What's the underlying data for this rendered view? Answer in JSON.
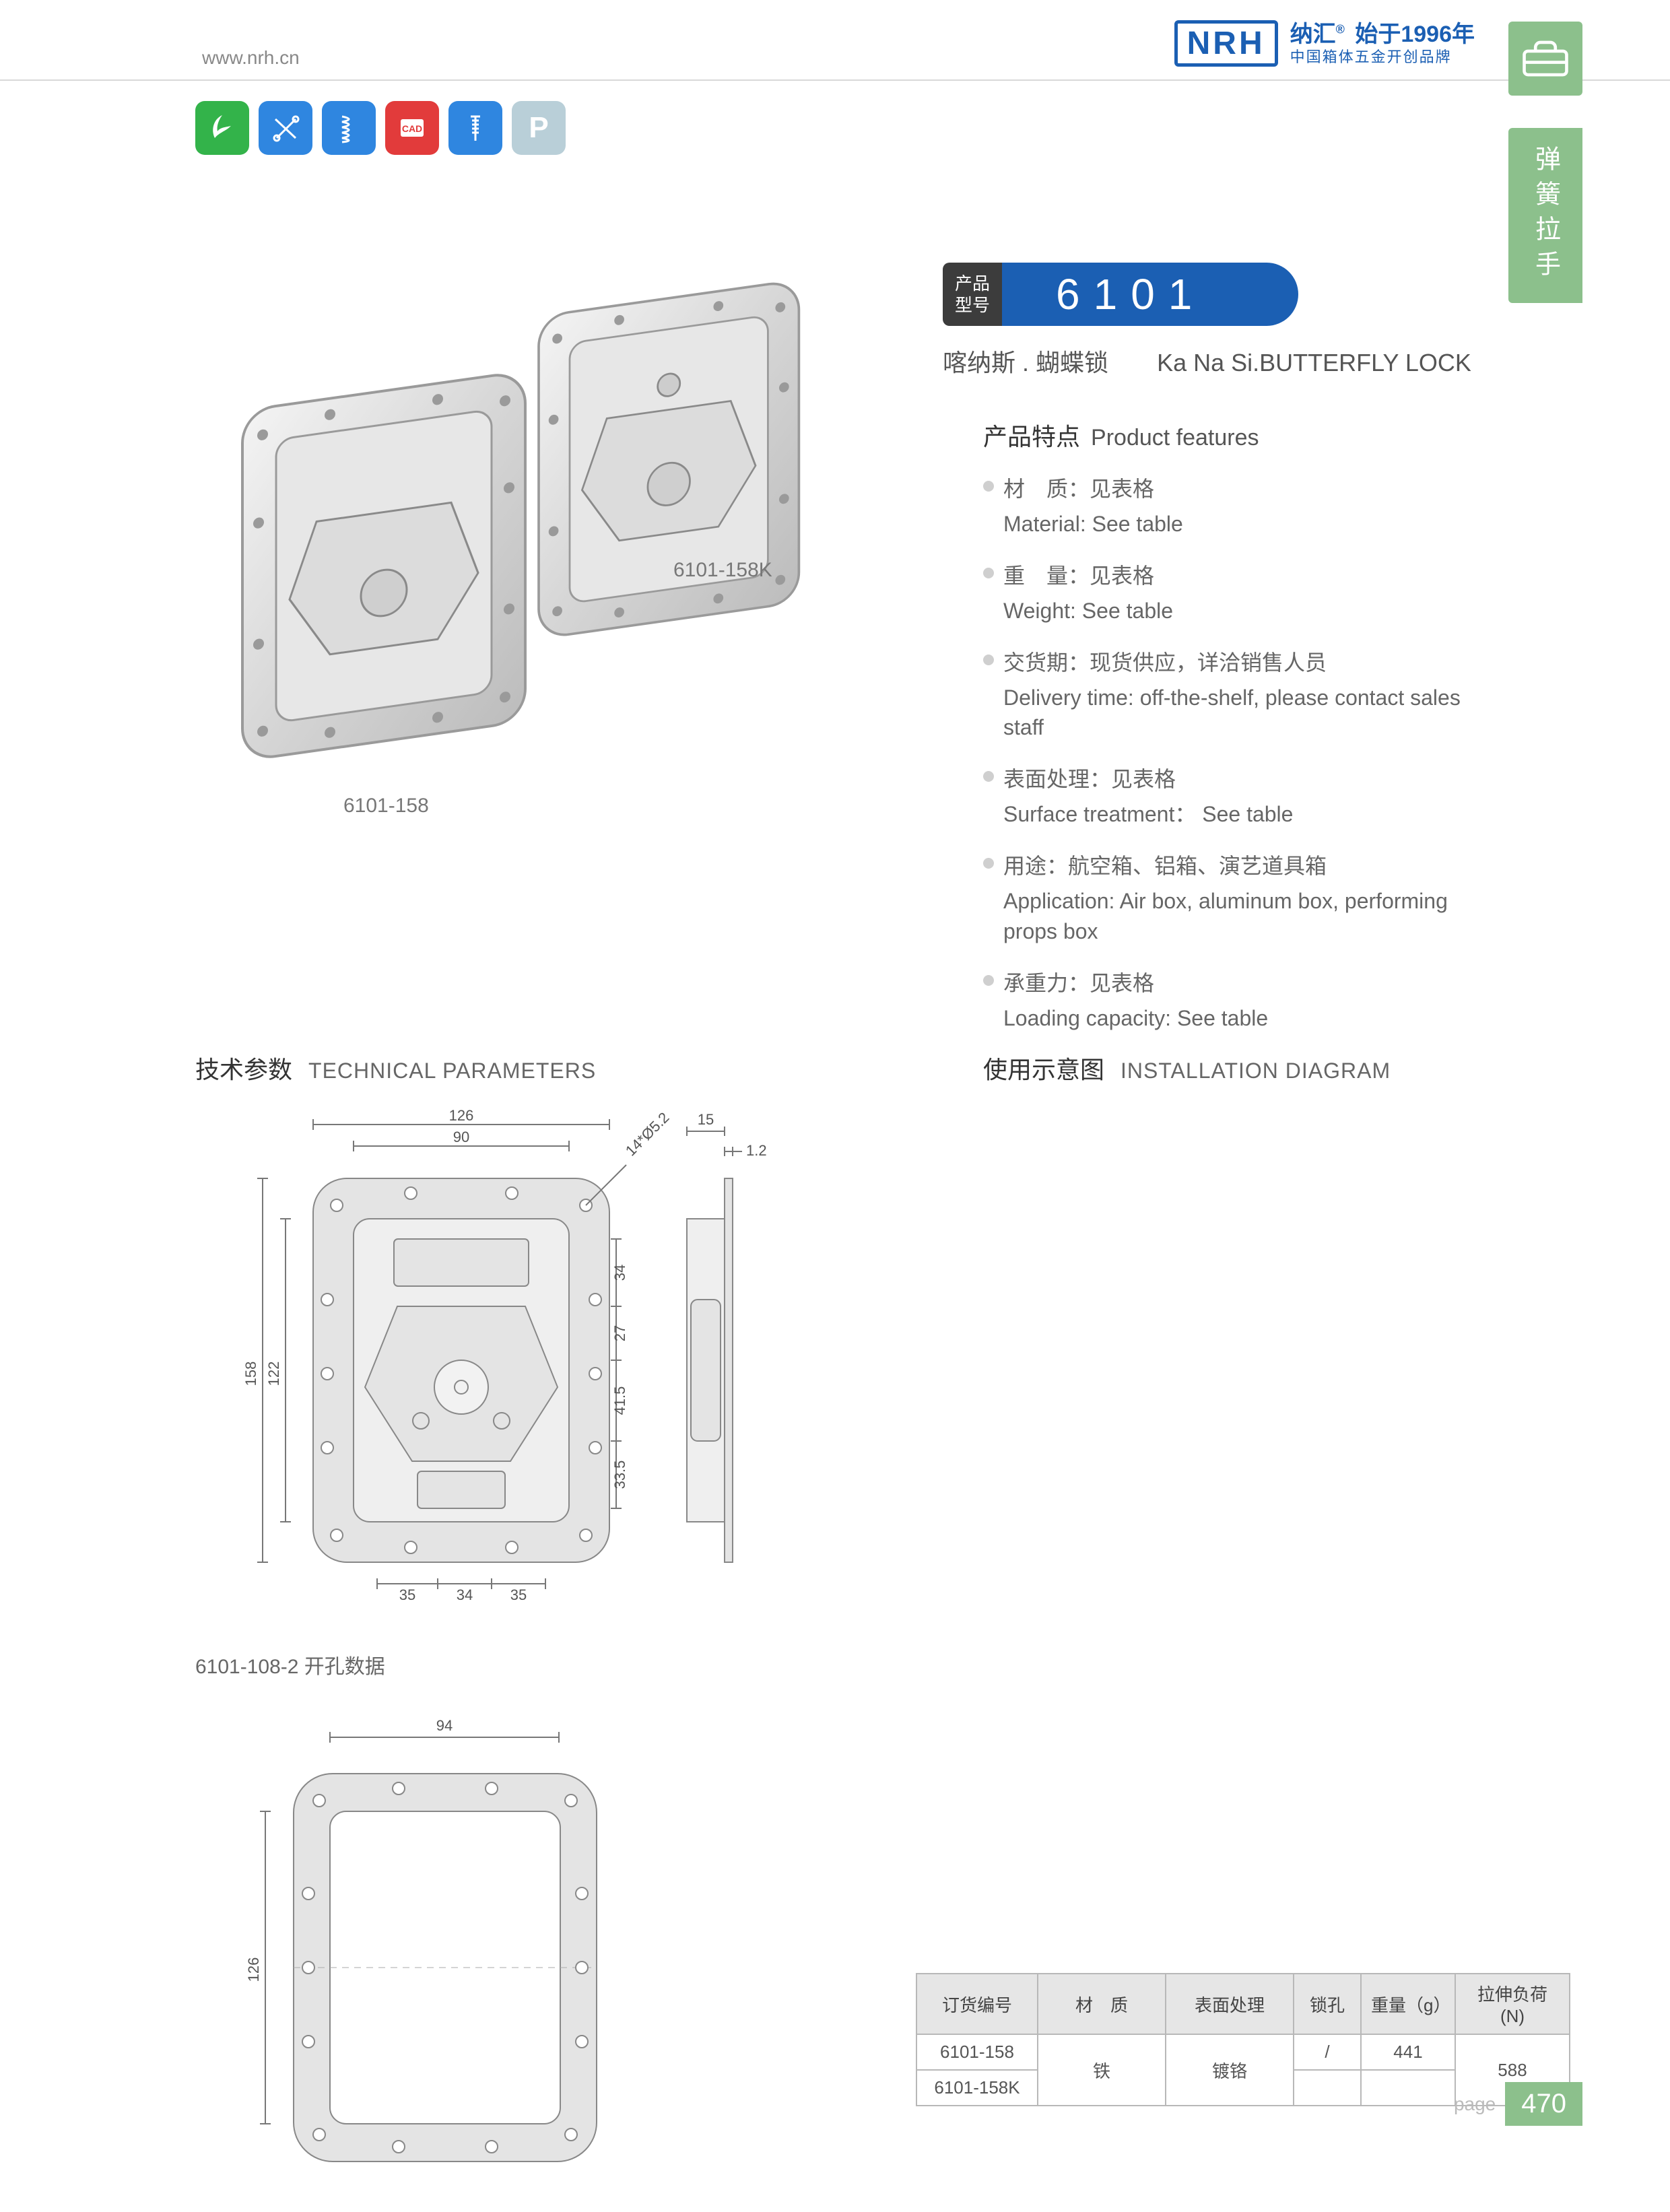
{
  "header": {
    "url": "www.nrh.cn",
    "logo_text": "NRH",
    "brand_cn": "纳汇",
    "brand_since": "始于1996年",
    "brand_tagline": "中国箱体五金开创品牌"
  },
  "side_tab": {
    "label": "弹簧拉手"
  },
  "badges": {
    "colors": [
      "#33b34a",
      "#2f86e0",
      "#2f86e0",
      "#e23b3b",
      "#2f86e0",
      "#b9cfd8"
    ],
    "cad_text": "CAD",
    "p_text": "P"
  },
  "photo_labels": {
    "left": "6101-158",
    "right": "6101-158K"
  },
  "model": {
    "prefix_line1": "产品",
    "prefix_line2": "型号",
    "number": "6101",
    "subtitle_cn": "喀纳斯 . 蝴蝶锁",
    "subtitle_en": "Ka Na Si.BUTTERFLY LOCK"
  },
  "features": {
    "title_cn": "产品特点",
    "title_en": "Product features",
    "items": [
      {
        "cn": "材　质：见表格",
        "en": "Material: See table"
      },
      {
        "cn": "重　量：见表格",
        "en": "Weight: See table"
      },
      {
        "cn": "交货期：现货供应，详洽销售人员",
        "en": "Delivery time: off-the-shelf, please contact sales staff"
      },
      {
        "cn": "表面处理：见表格",
        "en": "Surface treatment： See table"
      },
      {
        "cn": "用途：航空箱、铝箱、演艺道具箱",
        "en": "Application: Air box, aluminum box, performing props box"
      },
      {
        "cn": "承重力：见表格",
        "en": "Loading capacity: See table"
      }
    ]
  },
  "sections": {
    "tech_cn": "技术参数",
    "tech_en": "TECHNICAL PARAMETERS",
    "install_cn": "使用示意图",
    "install_en": "INSTALLATION DIAGRAM",
    "hole_label": "6101-108-2 开孔数据"
  },
  "dimensions_front": {
    "outer_w": "126",
    "inner_w": "90",
    "outer_h": "158",
    "inner_h": "122",
    "holes_note": "14*Ø5.2",
    "right_dims": [
      "34",
      "27",
      "41.5",
      "33.5"
    ],
    "bottom_dims": [
      "35",
      "34",
      "35"
    ]
  },
  "dimensions_side": {
    "top_w": "15",
    "thick": "1.2"
  },
  "dimensions_hole": {
    "w": "94",
    "h": "126"
  },
  "table": {
    "headers": [
      "订货编号",
      "材　质",
      "表面处理",
      "锁孔",
      "重量（g）",
      "拉伸负荷 (N)"
    ],
    "rows": [
      {
        "order_no": "6101-158",
        "lock": "/",
        "weight": "441"
      },
      {
        "order_no": "6101-158K",
        "lock": "",
        "weight": ""
      }
    ],
    "material": "铁",
    "surface": "镀铬",
    "load": "588"
  },
  "footer": {
    "page_word": "page",
    "page_num": "470"
  },
  "colors": {
    "brand_blue": "#1b5fb3",
    "side_green": "#8cc08c",
    "grey_fill": "#e4e4e4",
    "grey_stroke": "#888888"
  }
}
